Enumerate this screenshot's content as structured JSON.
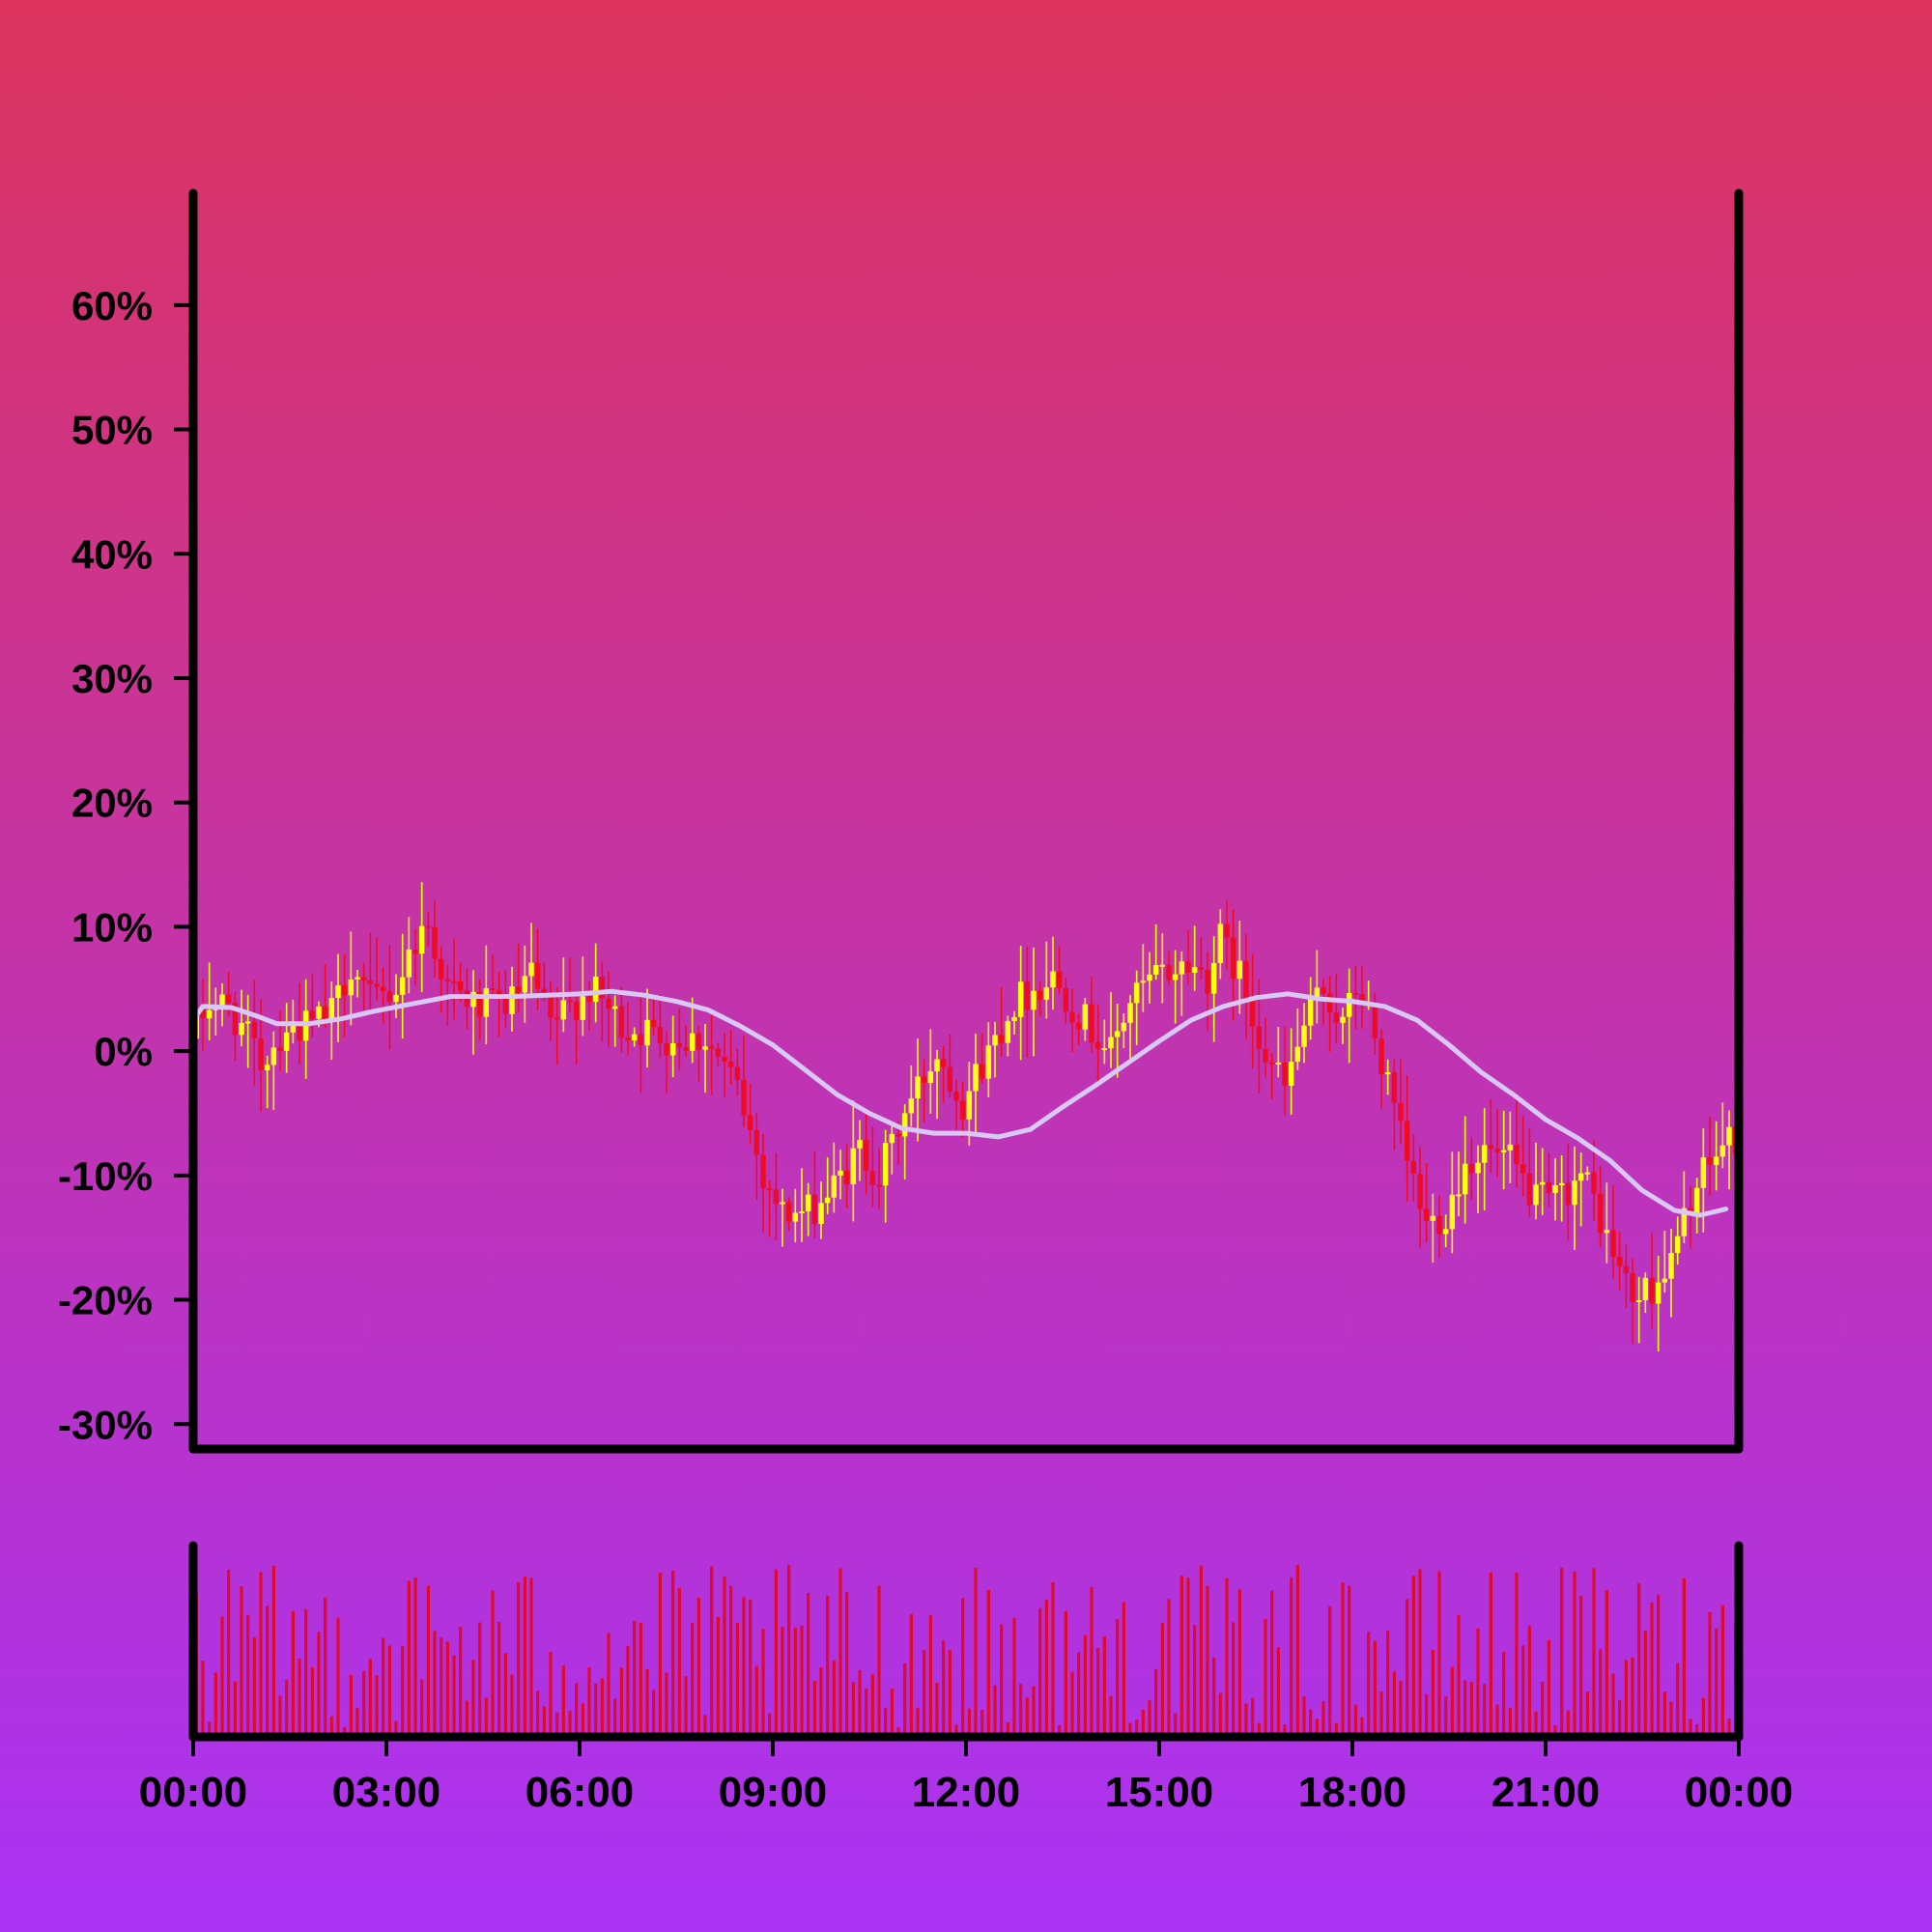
{
  "background": {
    "top": "#dc345e",
    "bottom": "#aa33f5"
  },
  "colors": {
    "axis": "#000000",
    "candle_up": "#ffff10",
    "candle_down": "#ee0c24",
    "moving_average": "#d7c8f5",
    "volume": "#dd0b2c"
  },
  "chart_data": {
    "type": "candlestick",
    "title": "",
    "xlabel": "",
    "ylabel": "",
    "ylim": [
      -0.32,
      0.69
    ],
    "y_ticks": [
      {
        "value": 0.6,
        "label": "60%"
      },
      {
        "value": 0.5,
        "label": "50%"
      },
      {
        "value": 0.4,
        "label": "40%"
      },
      {
        "value": 0.3,
        "label": "30%"
      },
      {
        "value": 0.2,
        "label": "20%"
      },
      {
        "value": 0.1,
        "label": "10%"
      },
      {
        "value": 0.0,
        "label": "0%"
      },
      {
        "value": -0.1,
        "label": "-10%"
      },
      {
        "value": -0.2,
        "label": "-20%"
      },
      {
        "value": -0.3,
        "label": "-30%"
      }
    ],
    "x_ticks": [
      {
        "value": 0,
        "label": "00:00"
      },
      {
        "value": 3,
        "label": "03:00"
      },
      {
        "value": 6,
        "label": "06:00"
      },
      {
        "value": 9,
        "label": "09:00"
      },
      {
        "value": 12,
        "label": "12:00"
      },
      {
        "value": 15,
        "label": "15:00"
      },
      {
        "value": 18,
        "label": "18:00"
      },
      {
        "value": 21,
        "label": "21:00"
      },
      {
        "value": 24,
        "label": "00:00"
      }
    ],
    "xlim": [
      0,
      24
    ],
    "grid": false,
    "price_path": [
      [
        0.0,
        0.01
      ],
      [
        0.3,
        0.04
      ],
      [
        0.6,
        0.035
      ],
      [
        0.9,
        0.01
      ],
      [
        1.1,
        -0.01
      ],
      [
        1.5,
        0.02
      ],
      [
        1.8,
        0.02
      ],
      [
        2.2,
        0.03
      ],
      [
        2.5,
        0.07
      ],
      [
        2.8,
        0.04
      ],
      [
        3.2,
        0.05
      ],
      [
        3.5,
        0.09
      ],
      [
        3.7,
        0.1
      ],
      [
        4.0,
        0.05
      ],
      [
        4.5,
        0.035
      ],
      [
        5.0,
        0.04
      ],
      [
        5.3,
        0.06
      ],
      [
        5.6,
        0.02
      ],
      [
        6.2,
        0.05
      ],
      [
        6.4,
        0.04
      ],
      [
        6.7,
        0.02
      ],
      [
        7.5,
        0.01
      ],
      [
        8.0,
        0.01
      ],
      [
        8.5,
        -0.03
      ],
      [
        8.9,
        -0.1
      ],
      [
        9.2,
        -0.13
      ],
      [
        9.6,
        -0.13
      ],
      [
        10.0,
        -0.11
      ],
      [
        10.4,
        -0.08
      ],
      [
        10.7,
        -0.1
      ],
      [
        11.1,
        -0.05
      ],
      [
        11.6,
        0.0
      ],
      [
        12.0,
        -0.04
      ],
      [
        12.4,
        0.0
      ],
      [
        12.8,
        0.04
      ],
      [
        13.4,
        0.06
      ],
      [
        13.8,
        0.03
      ],
      [
        14.3,
        0.0
      ],
      [
        14.6,
        0.04
      ],
      [
        15.0,
        0.06
      ],
      [
        15.5,
        0.07
      ],
      [
        15.8,
        0.06
      ],
      [
        16.0,
        0.09
      ],
      [
        16.3,
        0.06
      ],
      [
        16.7,
        0.0
      ],
      [
        17.0,
        -0.03
      ],
      [
        17.3,
        0.02
      ],
      [
        17.6,
        0.05
      ],
      [
        17.9,
        0.02
      ],
      [
        18.1,
        0.05
      ],
      [
        18.3,
        0.03
      ],
      [
        18.6,
        -0.03
      ],
      [
        18.9,
        -0.09
      ],
      [
        19.2,
        -0.14
      ],
      [
        19.5,
        -0.13
      ],
      [
        19.8,
        -0.09
      ],
      [
        20.1,
        -0.08
      ],
      [
        20.5,
        -0.09
      ],
      [
        20.9,
        -0.12
      ],
      [
        21.2,
        -0.12
      ],
      [
        21.6,
        -0.1
      ],
      [
        21.8,
        -0.12
      ],
      [
        22.0,
        -0.15
      ],
      [
        22.4,
        -0.2
      ],
      [
        22.7,
        -0.19
      ],
      [
        23.0,
        -0.17
      ],
      [
        23.3,
        -0.12
      ],
      [
        23.6,
        -0.09
      ],
      [
        23.9,
        -0.07
      ]
    ],
    "moving_average": [
      [
        0.0,
        0.025
      ],
      [
        0.15,
        0.036
      ],
      [
        0.6,
        0.035
      ],
      [
        1.0,
        0.028
      ],
      [
        1.3,
        0.022
      ],
      [
        1.8,
        0.022
      ],
      [
        2.3,
        0.026
      ],
      [
        2.8,
        0.032
      ],
      [
        3.4,
        0.038
      ],
      [
        4.0,
        0.044
      ],
      [
        4.5,
        0.044
      ],
      [
        5.0,
        0.044
      ],
      [
        5.5,
        0.045
      ],
      [
        6.0,
        0.046
      ],
      [
        6.5,
        0.048
      ],
      [
        7.0,
        0.045
      ],
      [
        7.5,
        0.04
      ],
      [
        8.0,
        0.033
      ],
      [
        8.5,
        0.02
      ],
      [
        9.0,
        0.005
      ],
      [
        9.5,
        -0.015
      ],
      [
        10.0,
        -0.035
      ],
      [
        10.5,
        -0.05
      ],
      [
        11.0,
        -0.062
      ],
      [
        11.5,
        -0.066
      ],
      [
        12.0,
        -0.066
      ],
      [
        12.5,
        -0.069
      ],
      [
        13.0,
        -0.063
      ],
      [
        13.5,
        -0.045
      ],
      [
        14.0,
        -0.028
      ],
      [
        14.5,
        -0.01
      ],
      [
        15.0,
        0.008
      ],
      [
        15.5,
        0.025
      ],
      [
        16.0,
        0.036
      ],
      [
        16.5,
        0.043
      ],
      [
        17.0,
        0.046
      ],
      [
        17.5,
        0.042
      ],
      [
        18.0,
        0.04
      ],
      [
        18.5,
        0.036
      ],
      [
        19.0,
        0.025
      ],
      [
        19.5,
        0.005
      ],
      [
        20.0,
        -0.017
      ],
      [
        20.5,
        -0.035
      ],
      [
        21.0,
        -0.055
      ],
      [
        21.5,
        -0.07
      ],
      [
        22.0,
        -0.088
      ],
      [
        22.5,
        -0.112
      ],
      [
        23.0,
        -0.128
      ],
      [
        23.4,
        -0.132
      ],
      [
        23.8,
        -0.127
      ]
    ],
    "candle_count": 240,
    "volume_range": [
      0.05,
      1.0
    ]
  }
}
